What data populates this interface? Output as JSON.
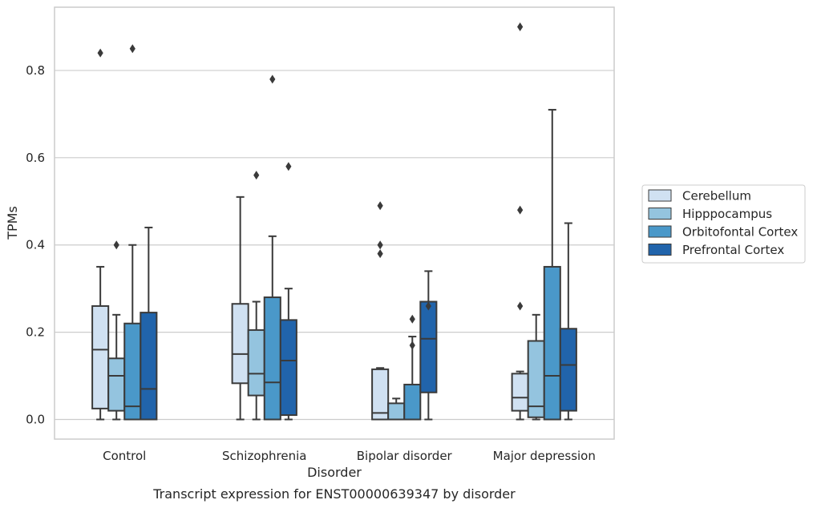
{
  "chart_data": {
    "type": "box",
    "xlabel": "Disorder",
    "ylabel": "TPMs",
    "caption": "Transcript expression for ENST00000639347 by disorder",
    "ylim": [
      -0.045,
      0.945
    ],
    "yticks": [
      0.0,
      0.2,
      0.4,
      0.6,
      0.8
    ],
    "ytick_labels": [
      "0.0",
      "0.2",
      "0.4",
      "0.6",
      "0.8"
    ],
    "grid": "horizontal",
    "legend_position": "right",
    "categories": [
      "Control",
      "Schizophrenia",
      "Bipolar disorder",
      "Major depression"
    ],
    "series": [
      {
        "name": "Cerebellum",
        "color": "#d0e1f2",
        "boxes": [
          {
            "whislo": 0.0,
            "q1": 0.025,
            "med": 0.16,
            "q3": 0.26,
            "whishi": 0.35,
            "fliers": [
              0.84
            ]
          },
          {
            "whislo": 0.0,
            "q1": 0.083,
            "med": 0.15,
            "q3": 0.265,
            "whishi": 0.51,
            "fliers": []
          },
          {
            "whislo": 0.0,
            "q1": 0.0,
            "med": 0.015,
            "q3": 0.115,
            "whishi": 0.118,
            "fliers": [
              0.38,
              0.4,
              0.49
            ]
          },
          {
            "whislo": 0.0,
            "q1": 0.02,
            "med": 0.05,
            "q3": 0.105,
            "whishi": 0.11,
            "fliers": [
              0.26,
              0.48,
              0.9
            ]
          }
        ]
      },
      {
        "name": "Hipppocampus",
        "color": "#94c4df",
        "boxes": [
          {
            "whislo": 0.0,
            "q1": 0.02,
            "med": 0.1,
            "q3": 0.14,
            "whishi": 0.24,
            "fliers": [
              0.4
            ]
          },
          {
            "whislo": 0.0,
            "q1": 0.055,
            "med": 0.105,
            "q3": 0.205,
            "whishi": 0.27,
            "fliers": [
              0.56
            ]
          },
          {
            "whislo": 0.0,
            "q1": 0.0,
            "med": 0.0,
            "q3": 0.037,
            "whishi": 0.048,
            "fliers": []
          },
          {
            "whislo": 0.0,
            "q1": 0.005,
            "med": 0.03,
            "q3": 0.18,
            "whishi": 0.24,
            "fliers": []
          }
        ]
      },
      {
        "name": "Orbitofontal Cortex",
        "color": "#4a98c9",
        "boxes": [
          {
            "whislo": 0.0,
            "q1": 0.0,
            "med": 0.03,
            "q3": 0.22,
            "whishi": 0.4,
            "fliers": [
              0.85
            ]
          },
          {
            "whislo": 0.0,
            "q1": 0.0,
            "med": 0.085,
            "q3": 0.28,
            "whishi": 0.42,
            "fliers": [
              0.78
            ]
          },
          {
            "whislo": 0.0,
            "q1": 0.0,
            "med": 0.0,
            "q3": 0.08,
            "whishi": 0.19,
            "fliers": [
              0.17,
              0.23
            ]
          },
          {
            "whislo": 0.0,
            "q1": 0.0,
            "med": 0.1,
            "q3": 0.35,
            "whishi": 0.71,
            "fliers": []
          }
        ]
      },
      {
        "name": "Prefrontal Cortex",
        "color": "#2164ab",
        "boxes": [
          {
            "whislo": 0.0,
            "q1": 0.0,
            "med": 0.07,
            "q3": 0.245,
            "whishi": 0.44,
            "fliers": []
          },
          {
            "whislo": 0.0,
            "q1": 0.01,
            "med": 0.135,
            "q3": 0.228,
            "whishi": 0.3,
            "fliers": [
              0.58
            ]
          },
          {
            "whislo": 0.0,
            "q1": 0.062,
            "med": 0.185,
            "q3": 0.27,
            "whishi": 0.34,
            "fliers": [
              0.26
            ]
          },
          {
            "whislo": 0.0,
            "q1": 0.02,
            "med": 0.125,
            "q3": 0.208,
            "whishi": 0.45,
            "fliers": []
          }
        ]
      }
    ]
  }
}
